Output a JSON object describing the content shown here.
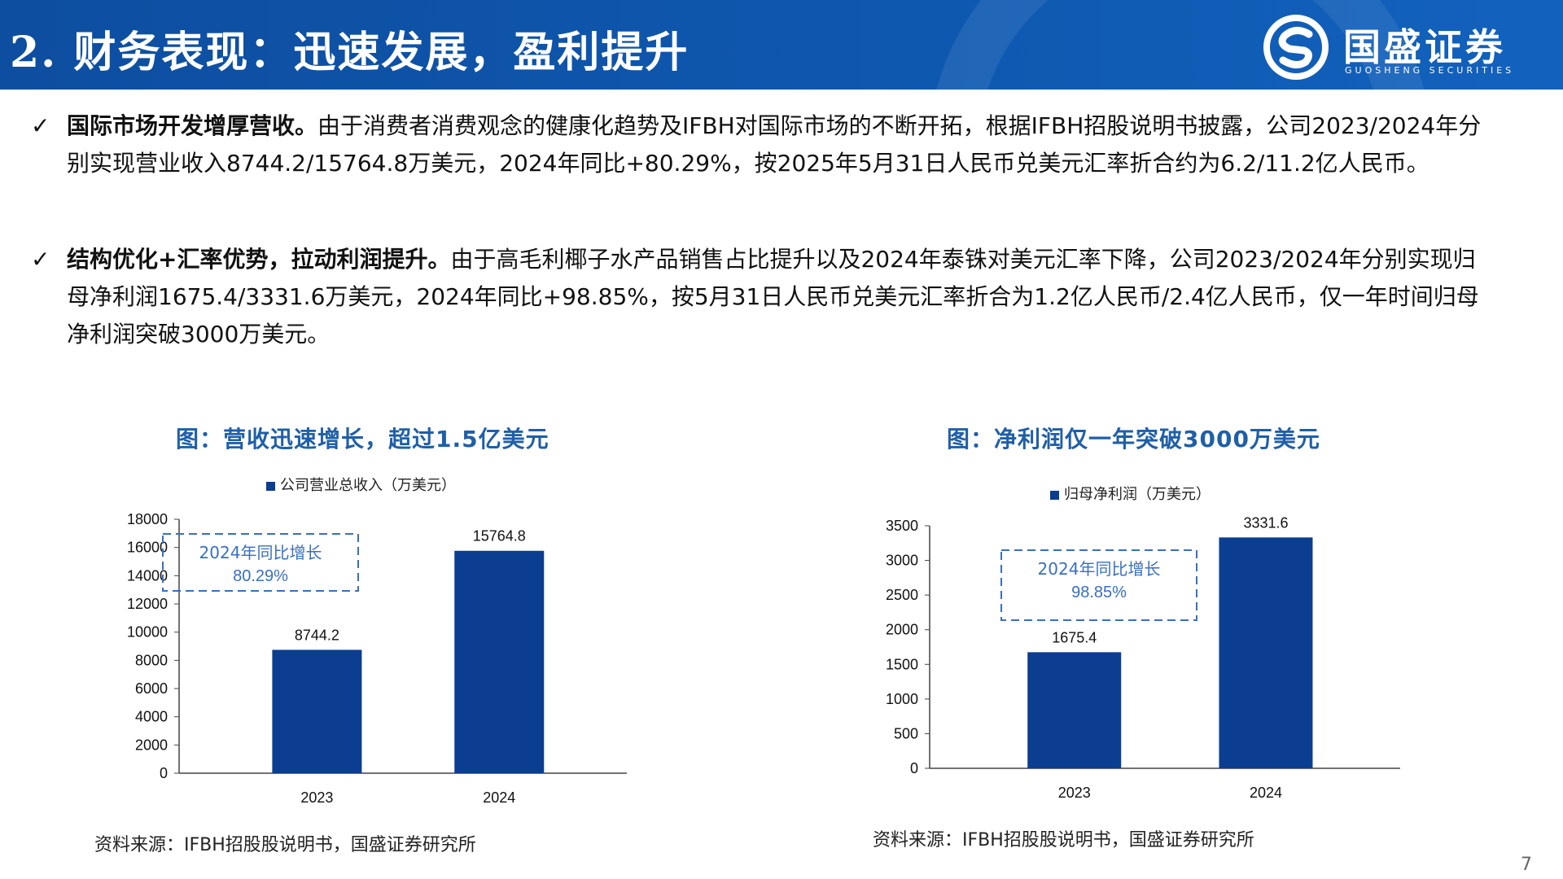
{
  "header": {
    "title": "2. 财务表现：迅速发展，盈利提升",
    "logo_cn": "国盛证券",
    "logo_en": "GUOSHENG SECURITIES"
  },
  "bullets": [
    {
      "check": "✓",
      "lead": "国际市场开发增厚营收。",
      "body": "由于消费者消费观念的健康化趋势及IFBH对国际市场的不断开拓，根据IFBH招股说明书披露，公司2023/2024年分别实现营业收入8744.2/15764.8万美元，2024年同比+80.29%，按2025年5月31日人民币兑美元汇率折合约为6.2/11.2亿人民币。"
    },
    {
      "check": "✓",
      "lead": "结构优化+汇率优势，拉动利润提升。",
      "body": "由于高毛利椰子水产品销售占比提升以及2024年泰铢对美元汇率下降，公司2023/2024年分别实现归母净利润1675.4/3331.6万美元，2024年同比+98.85%，按5月31日人民币兑美元汇率折合为1.2亿人民币/2.4亿人民币，仅一年时间归母净利润突破3000万美元。"
    }
  ],
  "chart_data": [
    {
      "type": "bar",
      "title": "图：营收迅速增长，超过1.5亿美元",
      "categories": [
        "2023",
        "2024"
      ],
      "series": [
        {
          "name": "公司营业总收入（万美元）",
          "values": [
            8744.2,
            15764.8
          ]
        }
      ],
      "data_labels": [
        "8744.2",
        "15764.8"
      ],
      "ylim": [
        0,
        18000
      ],
      "yticks": [
        0,
        2000,
        4000,
        6000,
        8000,
        10000,
        12000,
        14000,
        16000,
        18000
      ],
      "annotation": [
        "2024年同比增长",
        "80.29%"
      ],
      "color": "#0b3d91",
      "source": "资料来源：IFBH招股股说明书，国盛证券研究所"
    },
    {
      "type": "bar",
      "title": "图：净利润仅一年突破3000万美元",
      "categories": [
        "2023",
        "2024"
      ],
      "series": [
        {
          "name": "归母净利润（万美元）",
          "values": [
            1675.4,
            3331.6
          ]
        }
      ],
      "data_labels": [
        "1675.4",
        "3331.6"
      ],
      "ylim": [
        0,
        3500
      ],
      "yticks": [
        0,
        500,
        1000,
        1500,
        2000,
        2500,
        3000,
        3500
      ],
      "annotation": [
        "2024年同比增长",
        "98.85%"
      ],
      "color": "#0b3d91",
      "source": "资料来源：IFBH招股股说明书，国盛证券研究所"
    }
  ],
  "page_number": "7",
  "colors": {
    "header": "#0f58b0",
    "bar": "#0b3d91",
    "title_blue": "#1f5fa8",
    "annotation": "#3a6fc0"
  },
  "icons": {
    "logo": "guosheng-logo-icon",
    "check": "check-icon"
  }
}
